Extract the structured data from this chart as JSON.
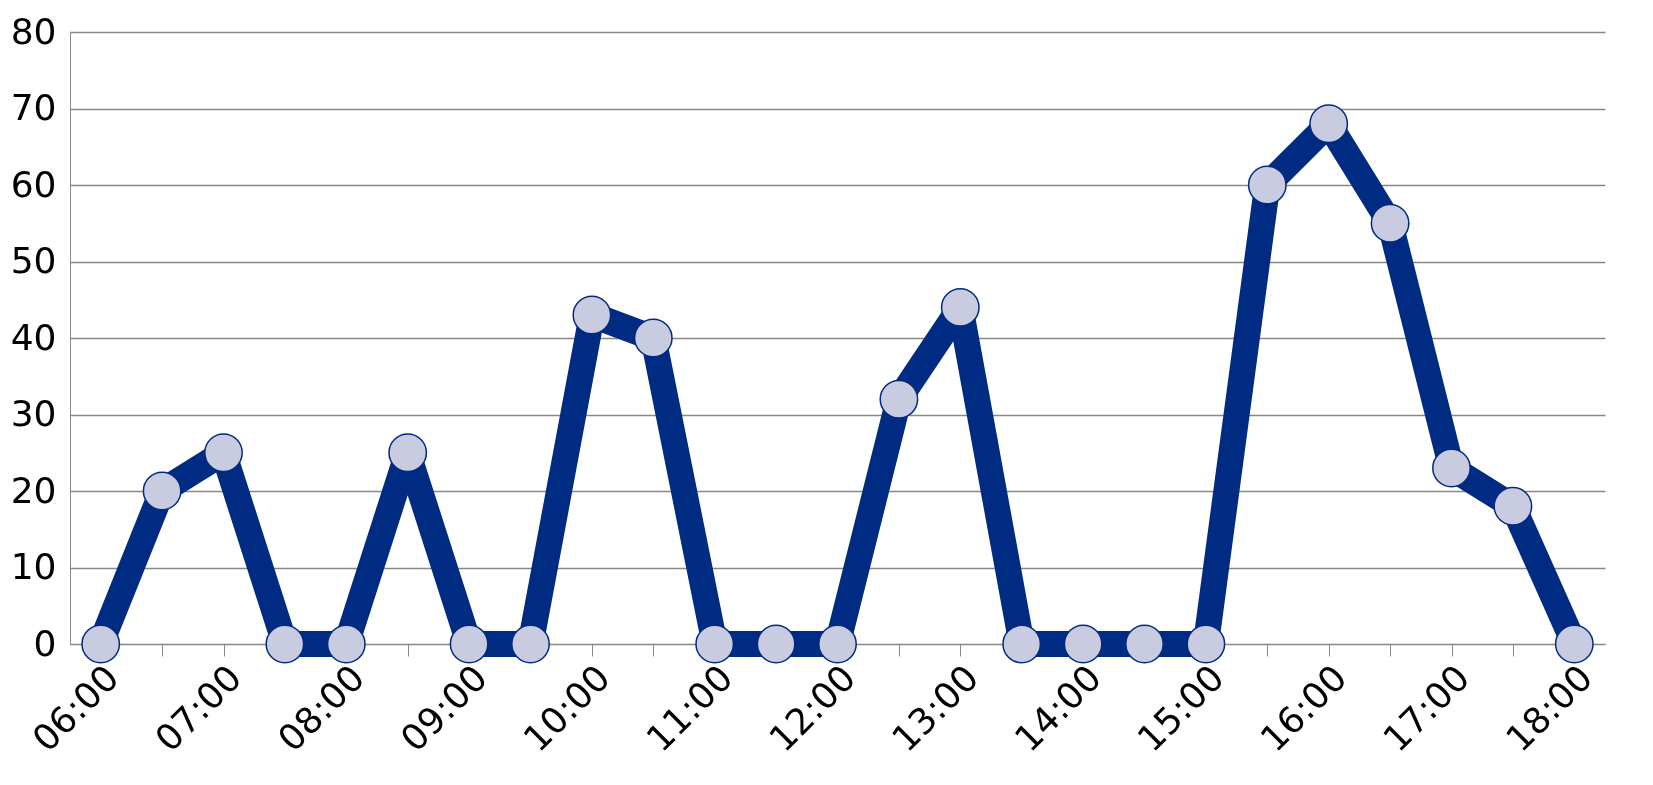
{
  "chart_data": {
    "type": "line",
    "categories": [
      "06:00",
      null,
      "07:00",
      null,
      "08:00",
      null,
      "09:00",
      null,
      "10:00",
      null,
      "11:00",
      null,
      "12:00",
      null,
      "13:00",
      null,
      "14:00",
      null,
      "15:00",
      null,
      "16:00",
      null,
      "17:00",
      null,
      "18:00"
    ],
    "series": [
      {
        "color": "#002b82",
        "values": [
          0,
          20,
          25,
          0,
          0,
          25,
          0,
          0,
          43,
          40,
          0,
          0,
          0,
          32,
          44,
          0,
          0,
          0,
          0,
          60,
          68,
          55,
          23,
          18,
          0
        ]
      }
    ],
    "ylim": [
      0,
      80
    ],
    "yticks": [
      0,
      10,
      20,
      30,
      40,
      50,
      60,
      70,
      80
    ],
    "grid": "y",
    "marker": "circle",
    "line_style": "solid"
  }
}
